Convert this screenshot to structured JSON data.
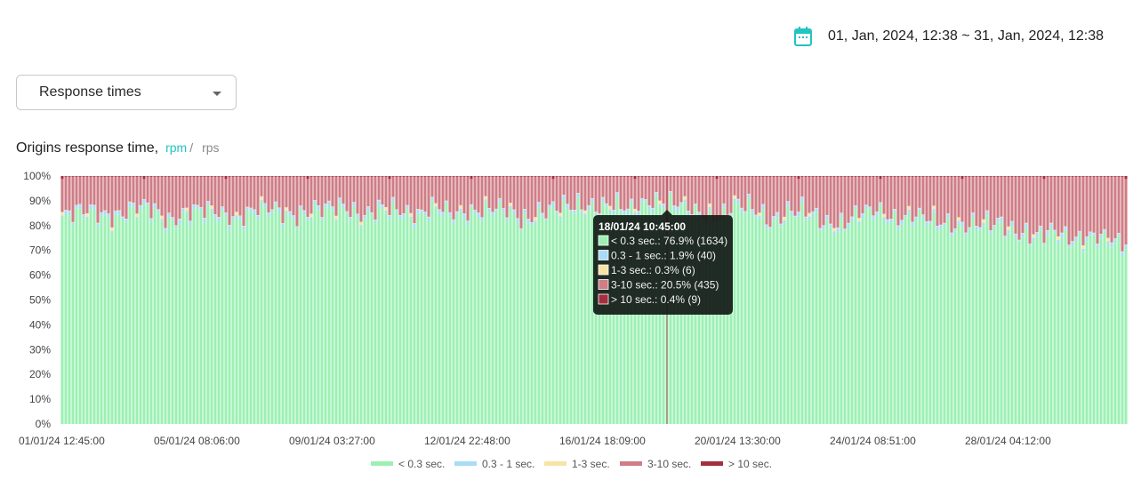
{
  "header": {
    "date_range": "01, Jan, 2024, 12:38 ~ 31, Jan, 2024, 12:38",
    "icon": "calendar-icon",
    "accent": "#23c3c0"
  },
  "metric_select": {
    "value": "Response times"
  },
  "chart_header": {
    "title": "Origins response time,",
    "unit_rpm": "rpm",
    "separator": "/",
    "unit_rps": "rps"
  },
  "chart_data": {
    "type": "bar",
    "stacked": true,
    "normalized_percent": true,
    "title": "Origins response time",
    "ylim": [
      0,
      100
    ],
    "y_ticks": [
      "0%",
      "10%",
      "20%",
      "30%",
      "40%",
      "50%",
      "60%",
      "70%",
      "80%",
      "90%",
      "100%"
    ],
    "x_tick_labels": [
      "01/01/24 12:45:00",
      "05/01/24 08:06:00",
      "09/01/24 03:27:00",
      "12/01/24 22:48:00",
      "16/01/24 18:09:00",
      "20/01/24 13:30:00",
      "24/01/24 08:51:00",
      "28/01/24 04:12:00"
    ],
    "x_start": "01/01/24 12:45:00",
    "bar_count": 300,
    "green_percent_profile": [
      82,
      83,
      85,
      83,
      84,
      86,
      82,
      83,
      84,
      85,
      82,
      84,
      86,
      84,
      83,
      85,
      88,
      82,
      84,
      86,
      84,
      85,
      83,
      86,
      85,
      84,
      82,
      85,
      84,
      87,
      88,
      86,
      84,
      90,
      89,
      85,
      84,
      83,
      86,
      85,
      82,
      84,
      83,
      81,
      80,
      82,
      85,
      83,
      82,
      80,
      81,
      79,
      78,
      80,
      77,
      73,
      76,
      75,
      74,
      72,
      72
    ],
    "series": [
      {
        "name": "< 0.3 sec.",
        "color": "#9cf0b4"
      },
      {
        "name": "0.3 - 1 sec.",
        "color": "#a8dcf5"
      },
      {
        "name": "1-3 sec.",
        "color": "#f7e3a3"
      },
      {
        "name": "3-10 sec.",
        "color": "#cf7d86"
      },
      {
        "name": "> 10 sec.",
        "color": "#a3303f"
      }
    ],
    "legend_position": "bottom",
    "grid": false,
    "tooltip": {
      "title": "18/01/24 10:45:00",
      "rows": [
        {
          "label": "< 0.3 sec.: 76.9% (1634)",
          "color": "#9cf0b4"
        },
        {
          "label": "0.3 - 1 sec.: 1.9% (40)",
          "color": "#a8dcf5"
        },
        {
          "label": "1-3 sec.: 0.3% (6)",
          "color": "#f7e3a3"
        },
        {
          "label": "3-10 sec.: 20.5% (435)",
          "color": "#cf7d86"
        },
        {
          "label": "> 10 sec.: 0.4% (9)",
          "color": "#a3303f"
        }
      ],
      "values": [
        76.9,
        1.9,
        0.3,
        20.5,
        0.4
      ]
    }
  }
}
